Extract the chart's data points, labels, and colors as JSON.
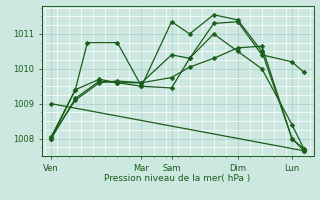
{
  "xlabel": "Pression niveau de la mer( hPa )",
  "bg_color": "#cce8e0",
  "grid_minor_color": "#ffffff",
  "grid_major_color": "#aacccc",
  "line_color": "#1a5c1a",
  "ylim": [
    1007.5,
    1011.8
  ],
  "xlim": [
    -0.3,
    22.3
  ],
  "xtick_labels": [
    "Ven",
    "Mar",
    "Sam",
    "Dim",
    "Lun"
  ],
  "xtick_positions": [
    0.5,
    8,
    10.5,
    16,
    20.5
  ],
  "ytick_labels": [
    "1008",
    "1009",
    "1010",
    "1011"
  ],
  "ytick_positions": [
    1008,
    1009,
    1010,
    1011
  ],
  "series": [
    {
      "x": [
        0.5,
        2.5,
        3.5,
        6,
        8,
        10.5,
        12,
        14,
        16,
        18,
        20.5,
        21.5
      ],
      "y": [
        1008.05,
        1009.4,
        1010.75,
        1010.75,
        1009.5,
        1009.45,
        1010.3,
        1011.3,
        1011.35,
        1010.4,
        1010.2,
        1009.9
      ]
    },
    {
      "x": [
        0.5,
        2.5,
        4.5,
        6,
        8,
        10.5,
        12,
        14,
        16,
        18,
        20.5,
        21.5
      ],
      "y": [
        1008.0,
        1009.4,
        1009.7,
        1009.6,
        1009.5,
        1011.35,
        1011.0,
        1011.55,
        1011.4,
        1010.5,
        1008.0,
        1007.65
      ]
    },
    {
      "x": [
        0.5,
        2.5,
        4.5,
        6,
        8,
        10.5,
        12,
        14,
        16,
        18,
        20.5,
        21.5
      ],
      "y": [
        1008.0,
        1009.15,
        1009.65,
        1009.6,
        1009.6,
        1010.4,
        1010.3,
        1011.0,
        1010.5,
        1010.0,
        1008.4,
        1007.7
      ]
    },
    {
      "x": [
        0.5,
        2.5,
        4.5,
        6,
        8,
        10.5,
        12,
        14,
        16,
        18,
        20.5,
        21.5
      ],
      "y": [
        1008.05,
        1009.1,
        1009.6,
        1009.65,
        1009.6,
        1009.75,
        1010.05,
        1010.3,
        1010.6,
        1010.65,
        1008.0,
        1007.7
      ]
    },
    {
      "x": [
        0.5,
        21.5
      ],
      "y": [
        1009.0,
        1007.65
      ]
    }
  ]
}
